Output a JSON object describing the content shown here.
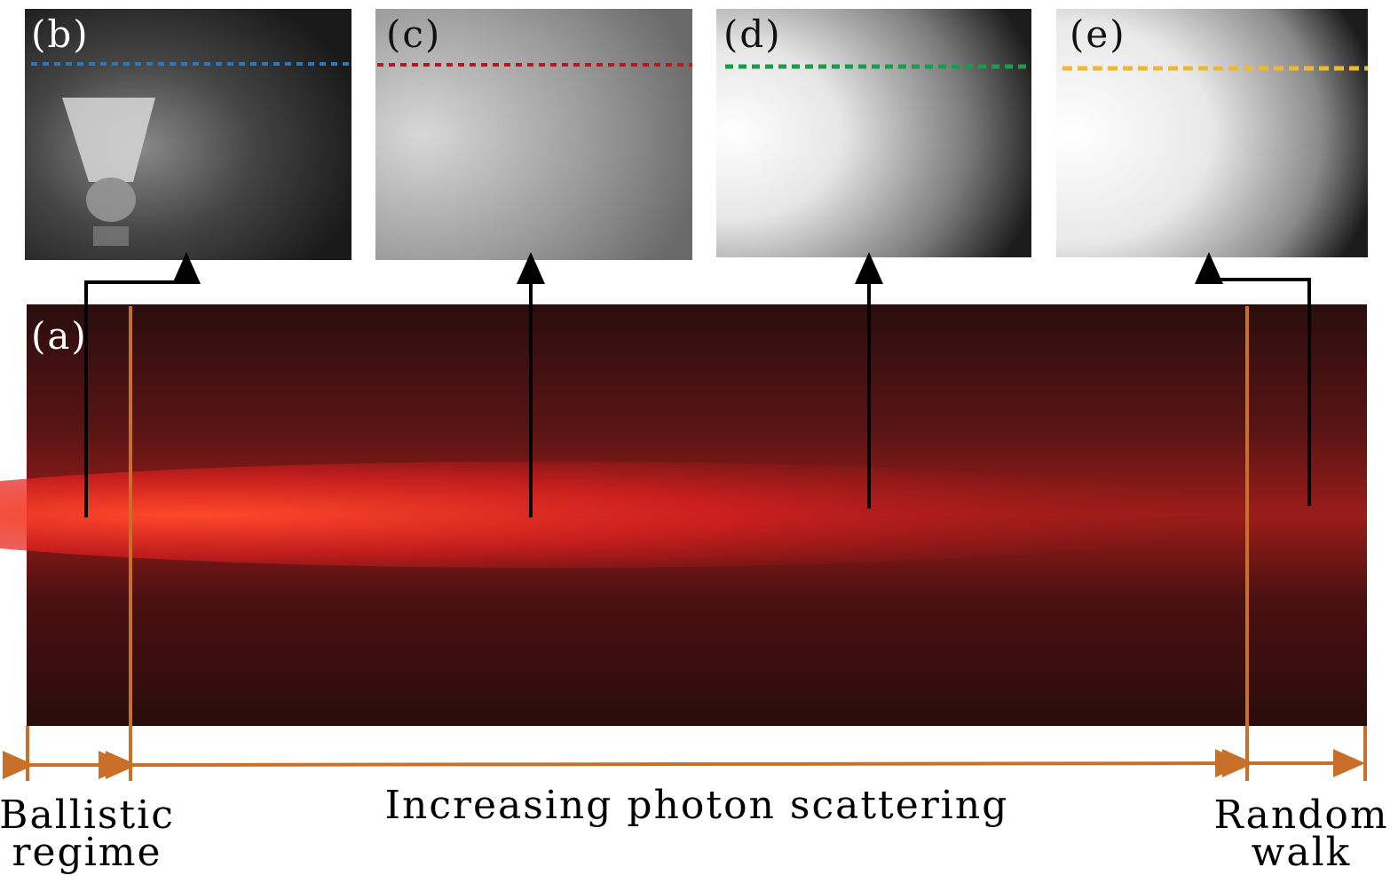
{
  "main_panel": {
    "label": "(a)"
  },
  "panels": [
    {
      "label": "(b)"
    },
    {
      "label": "(c)"
    },
    {
      "label": "(d)"
    },
    {
      "label": "(e)"
    }
  ],
  "regions": [
    {
      "lines": [
        "Ballistic",
        "regime"
      ]
    },
    {
      "lines": [
        "Increasing photon scattering"
      ]
    },
    {
      "lines": [
        "Random",
        "walk"
      ]
    }
  ]
}
